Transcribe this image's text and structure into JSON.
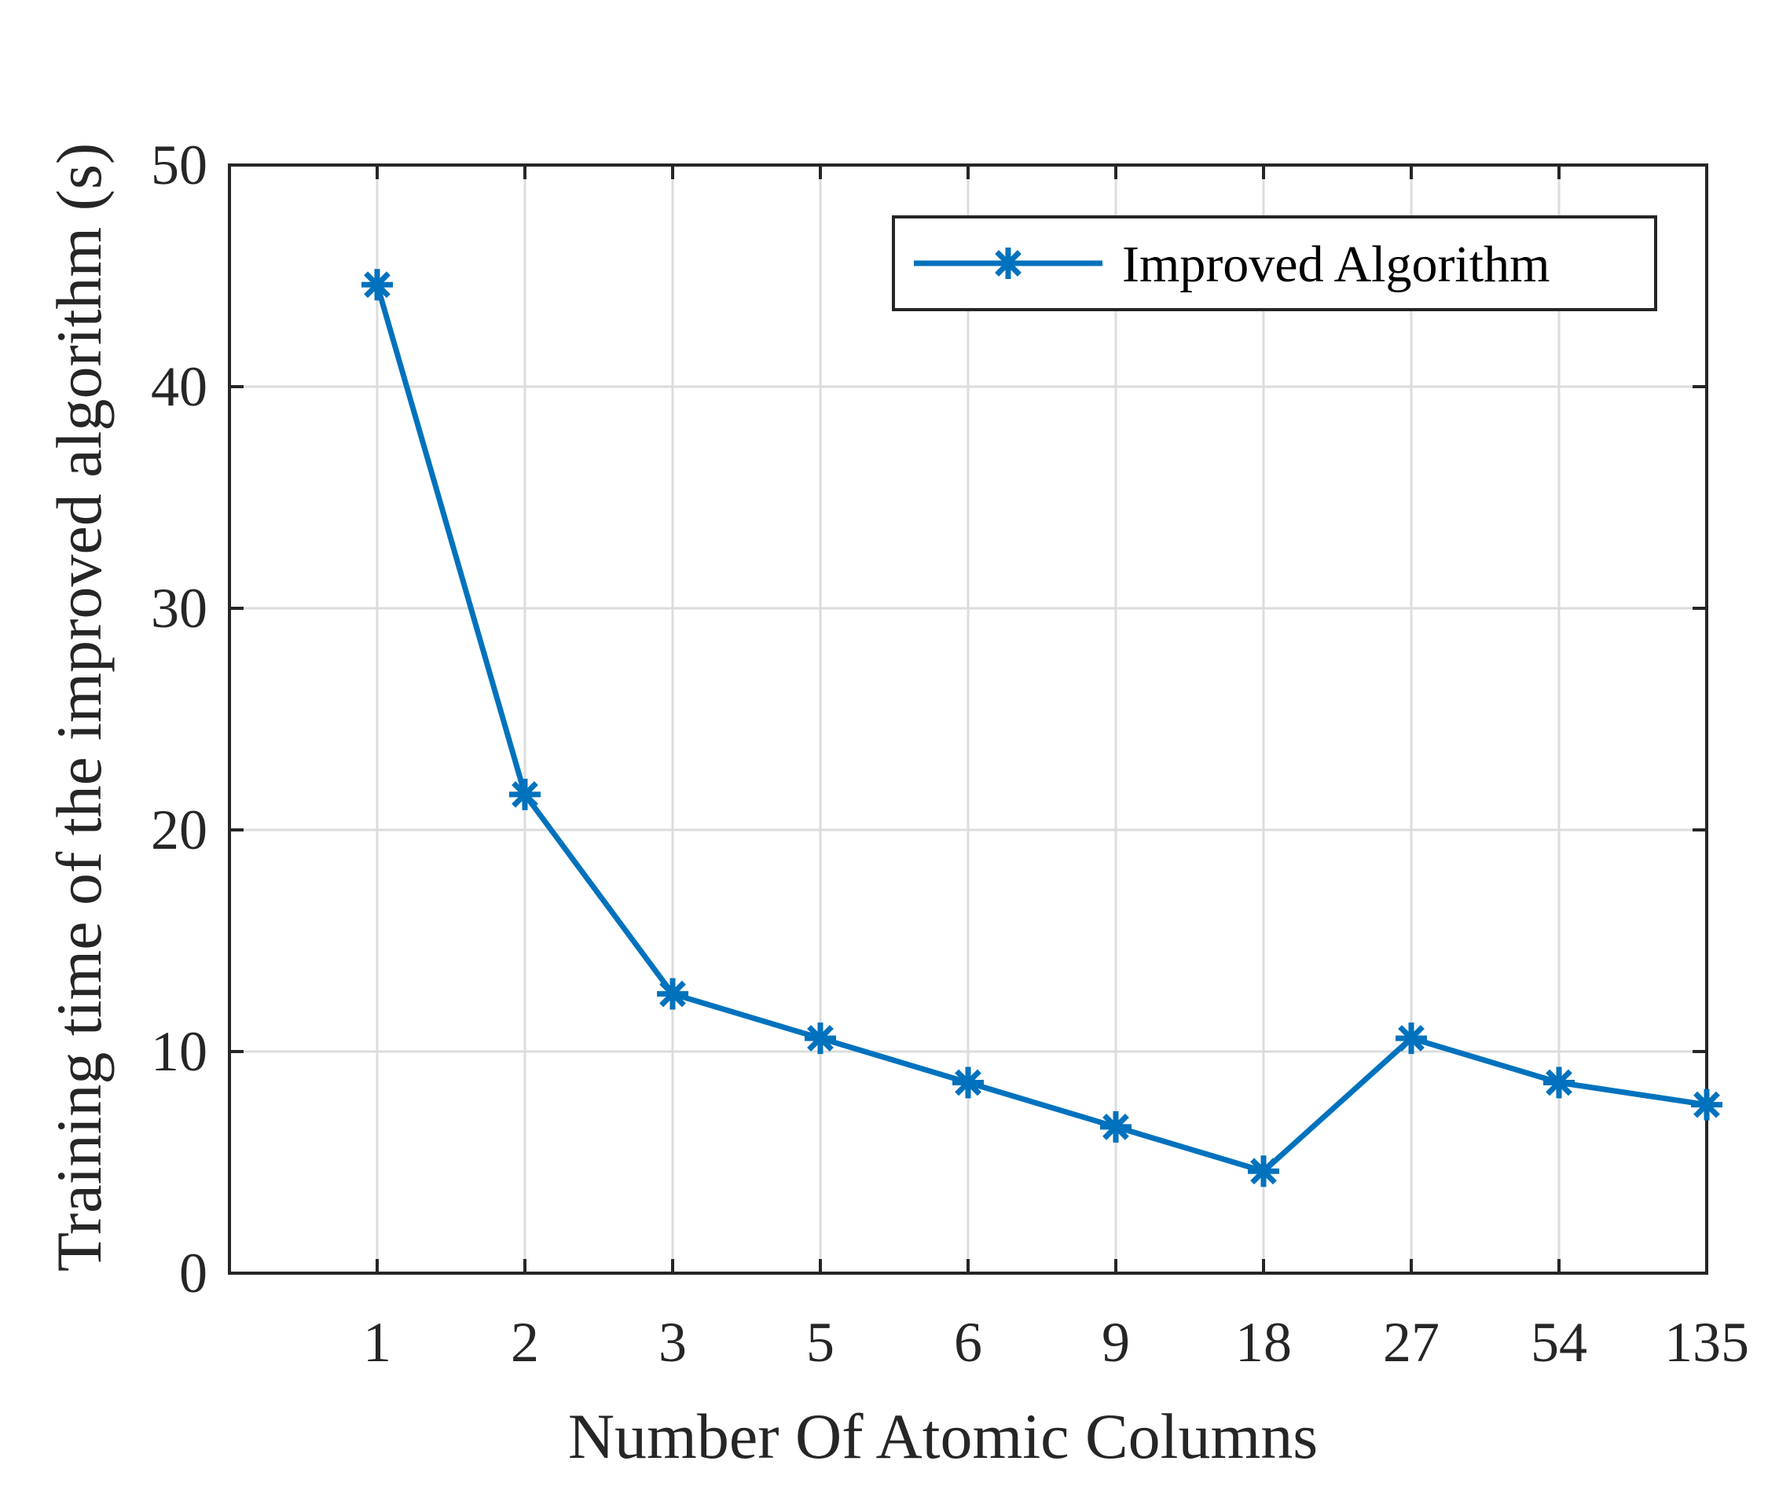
{
  "chart_data": {
    "type": "line",
    "categories": [
      "1",
      "2",
      "3",
      "5",
      "6",
      "9",
      "18",
      "27",
      "54",
      "135"
    ],
    "series": [
      {
        "name": "Improved Algorithm",
        "values": [
          44.6,
          21.6,
          12.6,
          10.6,
          8.6,
          6.6,
          4.6,
          10.6,
          8.6,
          7.6
        ],
        "color": "#0072BD",
        "marker": "asterisk"
      }
    ],
    "xlabel": "Number Of Atomic Columns",
    "ylabel": "Training time of the improved algorithm (s)",
    "ylim": [
      0,
      50
    ],
    "yticks": [
      0,
      10,
      20,
      30,
      40,
      50
    ],
    "grid": true,
    "legend_position": "top-right"
  }
}
